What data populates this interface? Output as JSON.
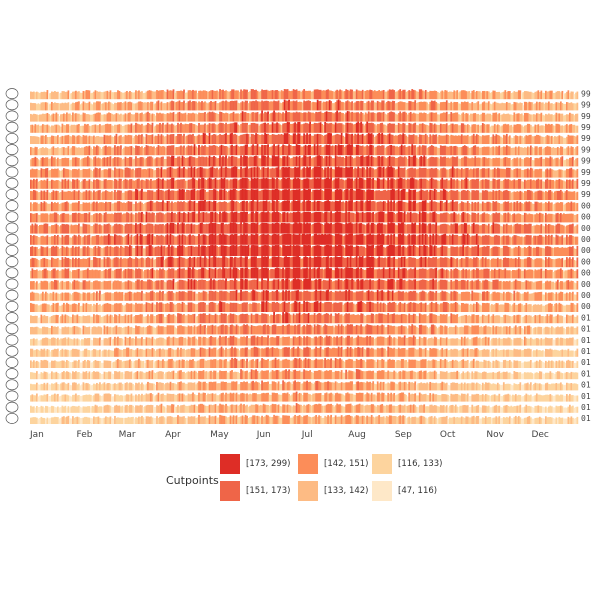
{
  "chart_data": {
    "type": "heatmap",
    "title": "",
    "months": [
      "Jan",
      "Feb",
      "Mar",
      "Apr",
      "May",
      "Jun",
      "Jul",
      "Aug",
      "Sep",
      "Oct",
      "Nov",
      "Dec"
    ],
    "right_labels": [
      "99",
      "99",
      "99",
      "99",
      "99",
      "99",
      "99",
      "99",
      "99",
      "99",
      "00",
      "00",
      "00",
      "00",
      "00",
      "00",
      "00",
      "00",
      "00",
      "00",
      "01",
      "01",
      "01",
      "01",
      "01",
      "01",
      "01",
      "01",
      "01",
      "01"
    ],
    "rows": 30,
    "row_mean_levels": [
      2.6,
      2.7,
      2.8,
      3.0,
      3.2,
      3.3,
      3.5,
      3.6,
      3.8,
      3.9,
      3.7,
      3.9,
      4.0,
      4.1,
      4.0,
      3.8,
      3.7,
      3.5,
      3.2,
      3.0,
      2.7,
      2.5,
      2.3,
      2.2,
      2.0,
      1.9,
      1.8,
      1.7,
      1.6,
      1.5
    ],
    "seasonal_peak_month": "Aug",
    "legend": {
      "title": "Cutpoints",
      "items": [
        {
          "label": "[173, 299)",
          "color": "#de2d26"
        },
        {
          "label": "[142, 151)",
          "color": "#fc8d59"
        },
        {
          "label": "[116, 133)",
          "color": "#fdd49e"
        },
        {
          "label": "[151, 173)",
          "color": "#ef6548"
        },
        {
          "label": "[133, 142)",
          "color": "#fdbb84"
        },
        {
          "label": "[47, 116)",
          "color": "#fee8c8"
        }
      ]
    },
    "level_colors": [
      "#fee8c8",
      "#fdd49e",
      "#fdbb84",
      "#fc8d59",
      "#ef6548",
      "#de2d26"
    ]
  }
}
